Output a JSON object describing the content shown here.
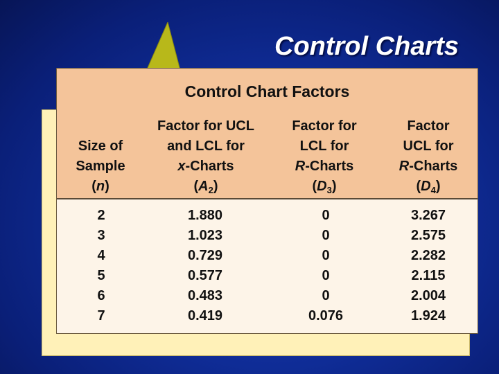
{
  "slide": {
    "title": "Control Charts"
  },
  "table": {
    "caption": "Control Chart Factors",
    "headers": {
      "n": {
        "line1": "Size of",
        "line2": "Sample",
        "open": "(",
        "var": "n",
        "close": ")"
      },
      "a2": {
        "line1": "Factor for UCL",
        "line2": "and LCL for",
        "var3": "x",
        "rest3": "-Charts",
        "open": "(",
        "var": "A",
        "sub": "2",
        "close": ")"
      },
      "d3": {
        "line1": "Factor for",
        "line2": "LCL for",
        "var3": "R",
        "rest3": "-Charts",
        "open": "(",
        "var": "D",
        "sub": "3",
        "close": ")"
      },
      "d4": {
        "line1": "Factor",
        "line2": "UCL for",
        "var3": "R",
        "rest3": "-Charts",
        "open": "(",
        "var": "D",
        "sub": "4",
        "close": ")"
      }
    },
    "columns": {
      "n": [
        "2",
        "3",
        "4",
        "5",
        "6",
        "7"
      ],
      "a2": [
        "1.880",
        "1.023",
        "0.729",
        "0.577",
        "0.483",
        "0.419"
      ],
      "d3": [
        "0",
        "0",
        "0",
        "0",
        "0",
        "0.076"
      ],
      "d4": [
        "3.267",
        "2.575",
        "2.282",
        "2.115",
        "2.004",
        "1.924"
      ]
    }
  },
  "colors": {
    "background": "#0f2c96",
    "header_fill": "#f4c49a",
    "body_fill": "#fdf4e8",
    "back_panel": "#fff1b8",
    "triangle": "#b8b81a"
  }
}
